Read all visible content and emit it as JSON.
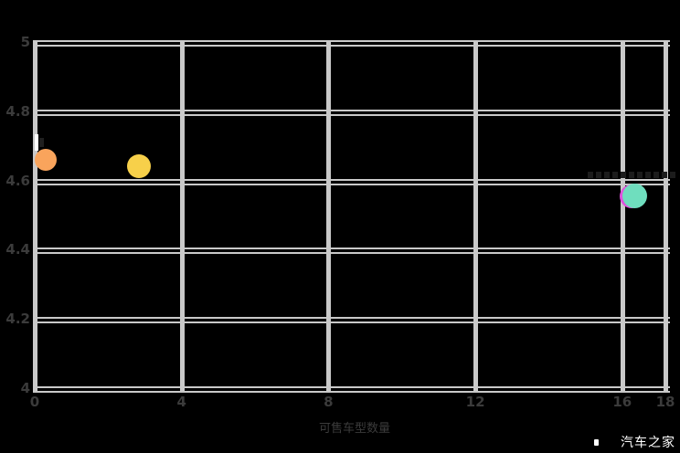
{
  "watermark": {
    "logo_icon": "autohome-logo-mark",
    "text": "汽车之家"
  },
  "colors": {
    "background": "#000000",
    "grid": "#c9c9c9",
    "tick_text": "#3b3b3b",
    "watermark_text": "#ffffff",
    "point_orange": "#F9A45C",
    "point_yellow": "#F7D04A",
    "point_teal": "#6FDEBE",
    "point_magenta_hidden": "#E052DE",
    "annotation_dash": "#1c1c1c"
  },
  "chart_data": {
    "type": "scatter",
    "title": "",
    "xlabel": "可售车型数量",
    "ylabel": "",
    "xlim": [
      0,
      17.25
    ],
    "ylim": [
      4,
      5
    ],
    "x_ticks": [
      {
        "value": 0,
        "label": "0"
      },
      {
        "value": 4,
        "label": "4"
      },
      {
        "value": 8,
        "label": "8"
      },
      {
        "value": 12,
        "label": "12"
      },
      {
        "value": 16,
        "label": "16"
      },
      {
        "value": 18,
        "label": "18"
      }
    ],
    "y_ticks": [
      {
        "value": 5,
        "label": "5"
      },
      {
        "value": 4.8,
        "label": "4.8"
      },
      {
        "value": 4.6,
        "label": "4.6"
      },
      {
        "value": 4.4,
        "label": "4.4"
      },
      {
        "value": 4.2,
        "label": "4.2"
      },
      {
        "value": 4,
        "label": "4"
      }
    ],
    "grid": true,
    "grid_style": "double-line-horizontal, thick-vertical",
    "legend": null,
    "series": [
      {
        "name": "point-orange",
        "x": 0.3,
        "y": 4.66,
        "color": "#F9A45C",
        "radius": 12
      },
      {
        "name": "point-yellow",
        "x": 2.84,
        "y": 4.64,
        "color": "#F7D04A",
        "radius": 13
      },
      {
        "name": "point-magenta-hidden",
        "x": 16.25,
        "y": 4.555,
        "color": "#E052DE",
        "radius": 13
      },
      {
        "name": "point-teal",
        "x": 16.35,
        "y": 4.555,
        "color": "#6FDEBE",
        "radius": 13.5
      }
    ],
    "hidden_annotation": {
      "x1": 15.05,
      "x2": 17.45,
      "y": 4.615,
      "color": "#1c1c1c"
    }
  }
}
